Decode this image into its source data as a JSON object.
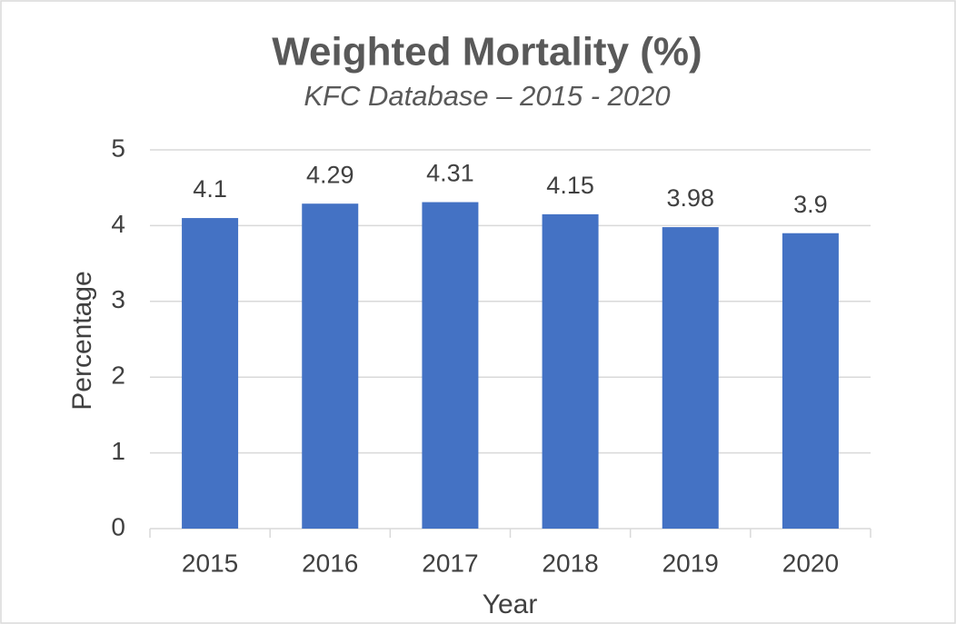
{
  "chart_data": {
    "type": "bar",
    "title": "Weighted Mortality (%)",
    "subtitle": "KFC Database – 2015 - 2020",
    "x_label": "Year",
    "y_label": "Percentage",
    "categories": [
      "2015",
      "2016",
      "2017",
      "2018",
      "2019",
      "2020"
    ],
    "values": [
      4.1,
      4.29,
      4.31,
      4.15,
      3.98,
      3.9
    ],
    "color": "#4472c4",
    "ylim": [
      0,
      5
    ],
    "yticks": [
      0,
      1,
      2,
      3,
      4,
      5
    ],
    "grid": true
  }
}
